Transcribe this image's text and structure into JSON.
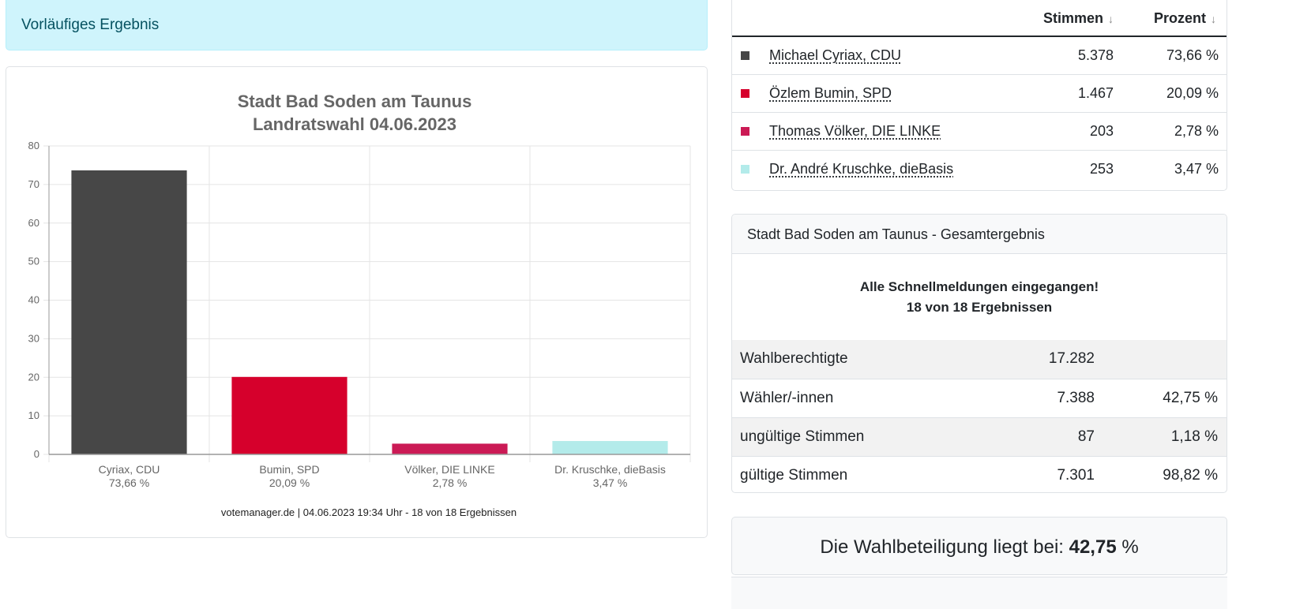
{
  "alert": {
    "text": "Vorläufiges Ergebnis"
  },
  "chart_data": {
    "type": "bar",
    "title": [
      "Stadt Bad Soden am Taunus",
      "Landratswahl 04.06.2023"
    ],
    "categories": [
      [
        "Cyriax, CDU",
        "73,66 %"
      ],
      [
        "Bumin, SPD",
        "20,09 %"
      ],
      [
        "Völker, DIE LINKE",
        "2,78 %"
      ],
      [
        "Dr. Kruschke, dieBasis",
        "3,47 %"
      ]
    ],
    "values": [
      73.66,
      20.09,
      2.78,
      3.47
    ],
    "colors": [
      "#474747",
      "#d6002c",
      "#cb1a55",
      "#b3ebea"
    ],
    "ylim": [
      0,
      80
    ],
    "yticks": [
      "0",
      "10",
      "20",
      "30",
      "40",
      "50",
      "60",
      "70",
      "80"
    ],
    "grid": true,
    "credit": "votemanager.de | 04.06.2023 19:34 Uhr - 18 von 18 Ergebnissen"
  },
  "results": {
    "headers": {
      "votes": "Stimmen",
      "percent": "Prozent",
      "sort_glyph": "↓"
    },
    "rows": [
      {
        "name": "Michael Cyriax, CDU",
        "votes": "5.378",
        "percent": "73,66 %",
        "color": "#474747"
      },
      {
        "name": "Özlem Bumin, SPD",
        "votes": "1.467",
        "percent": "20,09 %",
        "color": "#d6002c"
      },
      {
        "name": "Thomas Völker, DIE LINKE",
        "votes": "203",
        "percent": "2,78 %",
        "color": "#cb1a55"
      },
      {
        "name": "Dr. André Kruschke, dieBasis",
        "votes": "253",
        "percent": "3,47 %",
        "color": "#b3ebea"
      }
    ]
  },
  "summary": {
    "header": "Stadt Bad Soden am Taunus - Gesamtergebnis",
    "message_line1": "Alle Schnellmeldungen eingegangen!",
    "message_line2": "18 von 18 Ergebnissen",
    "rows": [
      {
        "label": "Wahlberechtigte",
        "value": "17.282",
        "percent": ""
      },
      {
        "label": "Wähler/-innen",
        "value": "7.388",
        "percent": "42,75 %"
      },
      {
        "label": "ungültige Stimmen",
        "value": "87",
        "percent": "1,18 %"
      },
      {
        "label": "gültige Stimmen",
        "value": "7.301",
        "percent": "98,82 %"
      }
    ]
  },
  "turnout": {
    "prefix": "Die Wahlbeteiligung liegt bei:",
    "value": "42,75",
    "unit": "%"
  }
}
